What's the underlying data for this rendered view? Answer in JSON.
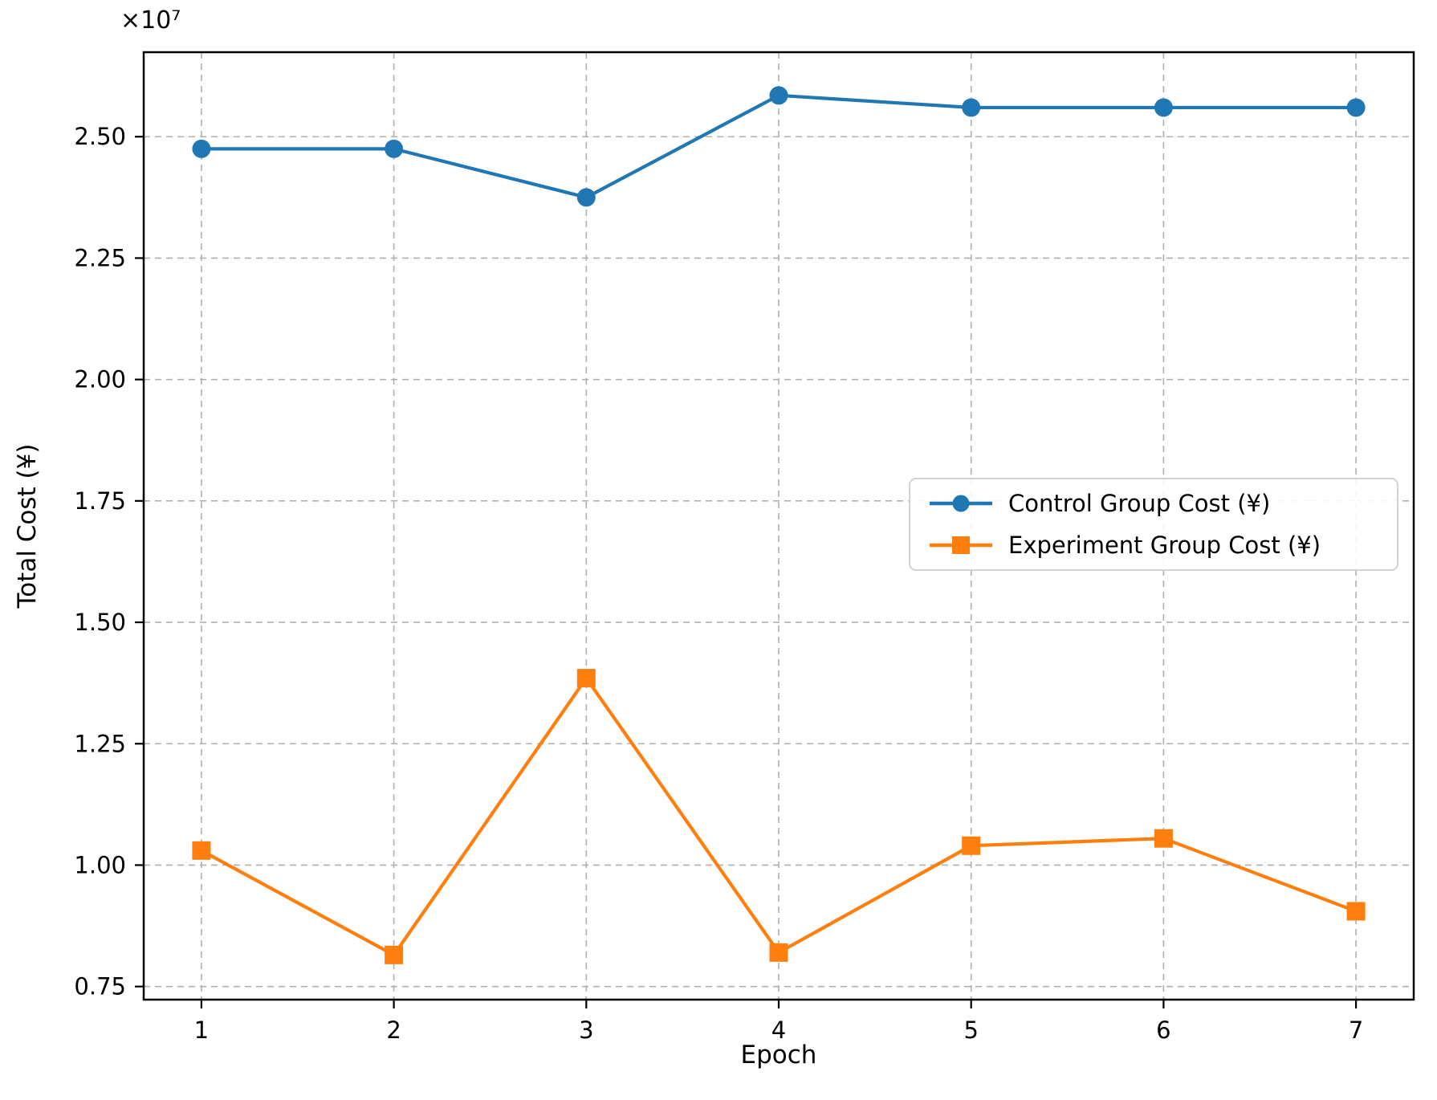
{
  "figure": {
    "offset_text": "×10⁷",
    "xlabel": "Epoch",
    "ylabel": "Total Cost (¥)"
  },
  "chart_data": {
    "type": "line",
    "title": "",
    "xlabel": "Epoch",
    "ylabel": "Total Cost (¥)",
    "y_scale_label": "×10⁷",
    "x": [
      1,
      2,
      3,
      4,
      5,
      6,
      7
    ],
    "xticklabels": [
      "1",
      "2",
      "3",
      "4",
      "5",
      "6",
      "7"
    ],
    "yticks_e7": [
      0.75,
      1.0,
      1.25,
      1.5,
      1.75,
      2.0,
      2.25,
      2.5
    ],
    "yticklabels": [
      "0.75",
      "1.00",
      "1.25",
      "1.50",
      "1.75",
      "2.00",
      "2.25",
      "2.50"
    ],
    "xlim": [
      0.7,
      7.3
    ],
    "ylim_e7": [
      0.723,
      2.674
    ],
    "grid": true,
    "grid_style": "dashed",
    "legend_position": "center-right",
    "series": [
      {
        "name": "Control Group Cost (¥)",
        "color": "#1f77b4",
        "marker": "circle",
        "values_e7": [
          2.475,
          2.475,
          2.375,
          2.585,
          2.56,
          2.56,
          2.56
        ]
      },
      {
        "name": "Experiment Group Cost (¥)",
        "color": "#ff7f0e",
        "marker": "square",
        "values_e7": [
          1.03,
          0.815,
          1.385,
          0.82,
          1.04,
          1.055,
          0.905
        ]
      }
    ]
  }
}
